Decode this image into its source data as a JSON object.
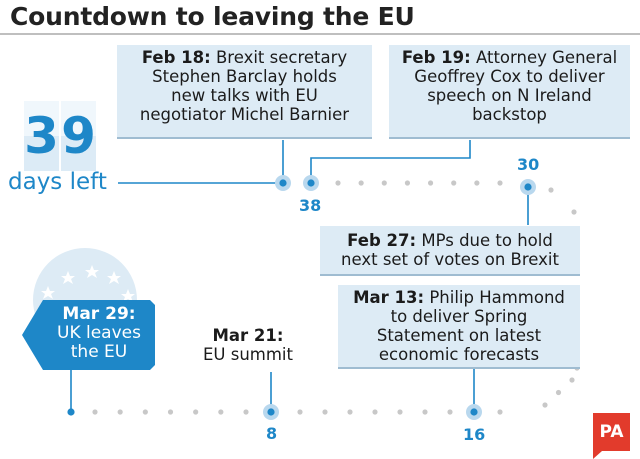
{
  "title": "Countdown to leaving the EU",
  "counter": {
    "digits": [
      "3",
      "9"
    ],
    "label": "days left"
  },
  "events": {
    "feb18": {
      "date": "Feb 18:",
      "text_line1": "Brexit secretary",
      "text_line2": "Stephen Barclay holds",
      "text_line3": "new talks with EU",
      "text_line4": "negotiator Michel Barnier"
    },
    "feb19": {
      "date": "Feb 19:",
      "text_line1": "Attorney General",
      "text_line2": "Geoffrey Cox to deliver",
      "text_line3": "speech on N Ireland",
      "text_line4": "backstop"
    },
    "feb27": {
      "date": "Feb 27:",
      "text_line1": "MPs due to hold",
      "text_line2": "next set of votes on Brexit"
    },
    "mar13": {
      "date": "Mar 13:",
      "text_line1": "Philip Hammond",
      "text_line2": "to deliver Spring",
      "text_line3": "Statement on latest",
      "text_line4": "economic forecasts"
    },
    "mar21": {
      "date": "Mar 21:",
      "text_line1": "EU summit"
    },
    "mar29": {
      "date": "Mar 29:",
      "text_line1": "UK leaves",
      "text_line2": "the EU"
    }
  },
  "milestones": {
    "m38": "38",
    "m30": "30",
    "m16": "16",
    "m8": "8"
  },
  "logo": "PA",
  "colors": {
    "accent": "#1e87c8",
    "card": "#ddebf5",
    "dot": "#c8c8c8",
    "logo": "#e23b2c"
  }
}
